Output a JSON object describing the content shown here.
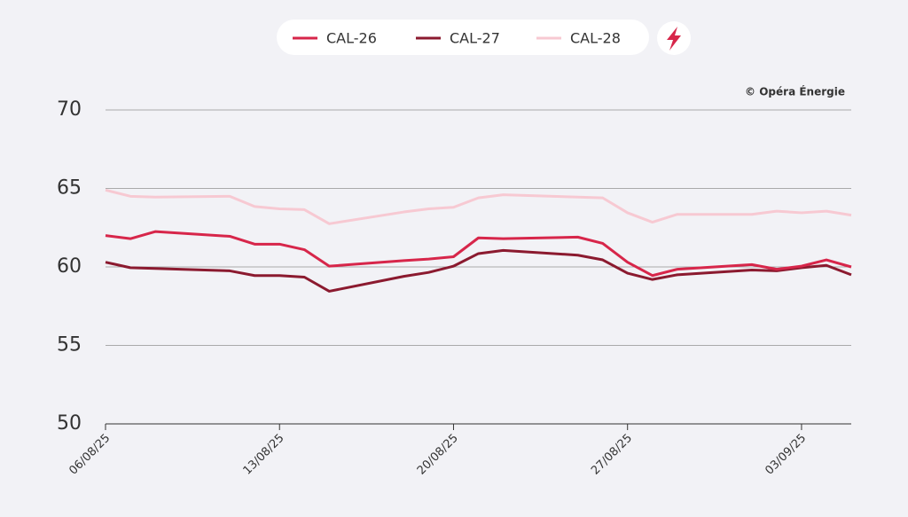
{
  "chart_data": {
    "type": "line",
    "credit": "© Opéra Énergie",
    "x": [
      "06/08/25",
      "07/08/25",
      "08/08/25",
      "11/08/25",
      "12/08/25",
      "13/08/25",
      "14/08/25",
      "15/08/25",
      "18/08/25",
      "19/08/25",
      "20/08/25",
      "21/08/25",
      "22/08/25",
      "25/08/25",
      "26/08/25",
      "27/08/25",
      "28/08/25",
      "29/08/25",
      "01/09/25",
      "02/09/25",
      "03/09/25",
      "04/09/25",
      "05/09/25"
    ],
    "series": [
      {
        "name": "CAL-26",
        "color": "#d7264a",
        "values": [
          62.0,
          61.8,
          62.25,
          61.95,
          61.45,
          61.45,
          61.1,
          60.05,
          60.4,
          60.5,
          60.65,
          61.85,
          61.8,
          61.9,
          61.5,
          60.3,
          59.45,
          59.85,
          60.15,
          59.85,
          60.05,
          60.45,
          60.0
        ]
      },
      {
        "name": "CAL-27",
        "color": "#8b1a2f",
        "values": [
          60.3,
          59.95,
          59.9,
          59.75,
          59.45,
          59.45,
          59.35,
          58.45,
          59.4,
          59.65,
          60.05,
          60.85,
          61.05,
          60.75,
          60.45,
          59.6,
          59.2,
          59.5,
          59.8,
          59.75,
          59.95,
          60.1,
          59.5
        ]
      },
      {
        "name": "CAL-28",
        "color": "#f7c9d2",
        "values": [
          64.9,
          64.5,
          64.45,
          64.5,
          63.85,
          63.7,
          63.65,
          62.75,
          63.5,
          63.7,
          63.8,
          64.4,
          64.6,
          64.45,
          64.4,
          63.45,
          62.85,
          63.35,
          63.35,
          63.55,
          63.45,
          63.55,
          63.3
        ]
      }
    ],
    "xlim": [
      "06/08/25",
      "05/09/25"
    ],
    "xticks": [
      "06/08/25",
      "13/08/25",
      "20/08/25",
      "27/08/25",
      "03/09/25"
    ],
    "ylim": [
      50,
      70
    ],
    "yticks": [
      50,
      55,
      60,
      65,
      70
    ],
    "grid": true
  }
}
